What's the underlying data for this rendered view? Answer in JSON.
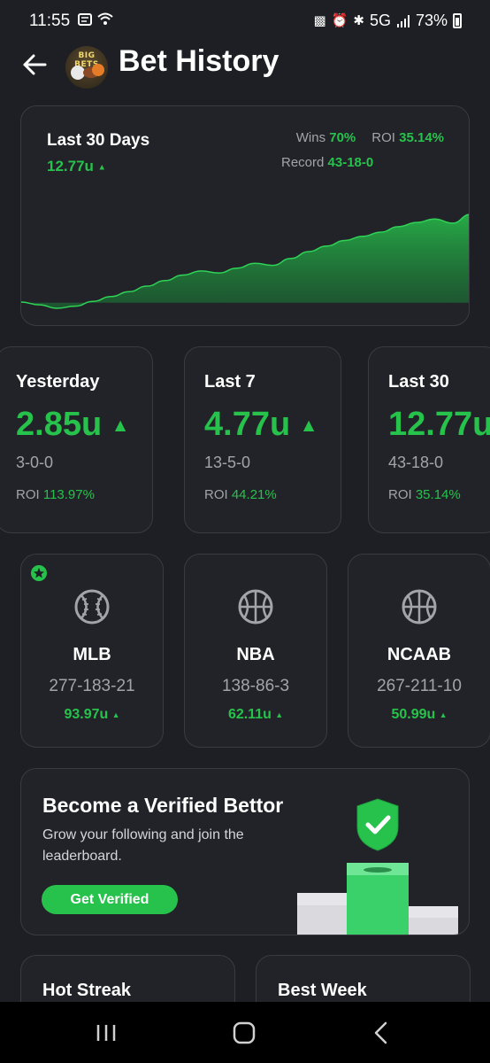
{
  "status_bar": {
    "time": "11:55",
    "network": "5G",
    "battery": "73%"
  },
  "header": {
    "title": "Bet History",
    "logo_text": "BIG BETS"
  },
  "summary": {
    "period": "Last 30 Days",
    "units": "12.77u",
    "wins_label": "Wins",
    "wins_value": "70%",
    "roi_label": "ROI",
    "roi_value": "35.14%",
    "record_label": "Record",
    "record_value": "43-18-0",
    "trend_points": [
      0.1,
      -0.3,
      -0.8,
      -0.5,
      0.2,
      0.9,
      1.6,
      2.4,
      3.2,
      4.0,
      4.6,
      4.3,
      5.0,
      5.7,
      5.4,
      6.4,
      7.4,
      8.2,
      9.0,
      9.6,
      10.2,
      11.0,
      11.6,
      12.1,
      11.5,
      12.77
    ]
  },
  "periods": [
    {
      "label": "Yesterday",
      "units": "2.85u",
      "record": "3-0-0",
      "roi_label": "ROI",
      "roi_value": "113.97%"
    },
    {
      "label": "Last 7",
      "units": "4.77u",
      "record": "13-5-0",
      "roi_label": "ROI",
      "roi_value": "44.21%"
    },
    {
      "label": "Last 30",
      "units": "12.77u",
      "record": "43-18-0",
      "roi_label": "ROI",
      "roi_value": "35.14%"
    }
  ],
  "sports": [
    {
      "name": "MLB",
      "record": "277-183-21",
      "units": "93.97u",
      "icon": "baseball-icon",
      "favorite": true
    },
    {
      "name": "NBA",
      "record": "138-86-3",
      "units": "62.11u",
      "icon": "basketball-icon",
      "favorite": false
    },
    {
      "name": "NCAAB",
      "record": "267-211-10",
      "units": "50.99u",
      "icon": "basketball-icon",
      "favorite": false
    }
  ],
  "verified": {
    "title": "Become a Verified Bettor",
    "description": "Grow your following and join the leaderboard.",
    "button_label": "Get Verified"
  },
  "bottom_cards": [
    {
      "title": "Hot Streak"
    },
    {
      "title": "Best Week"
    }
  ],
  "colors": {
    "background": "#1e1f24",
    "card": "#222329",
    "accent_green": "#27c24c",
    "muted_text": "#a3a4aa"
  }
}
